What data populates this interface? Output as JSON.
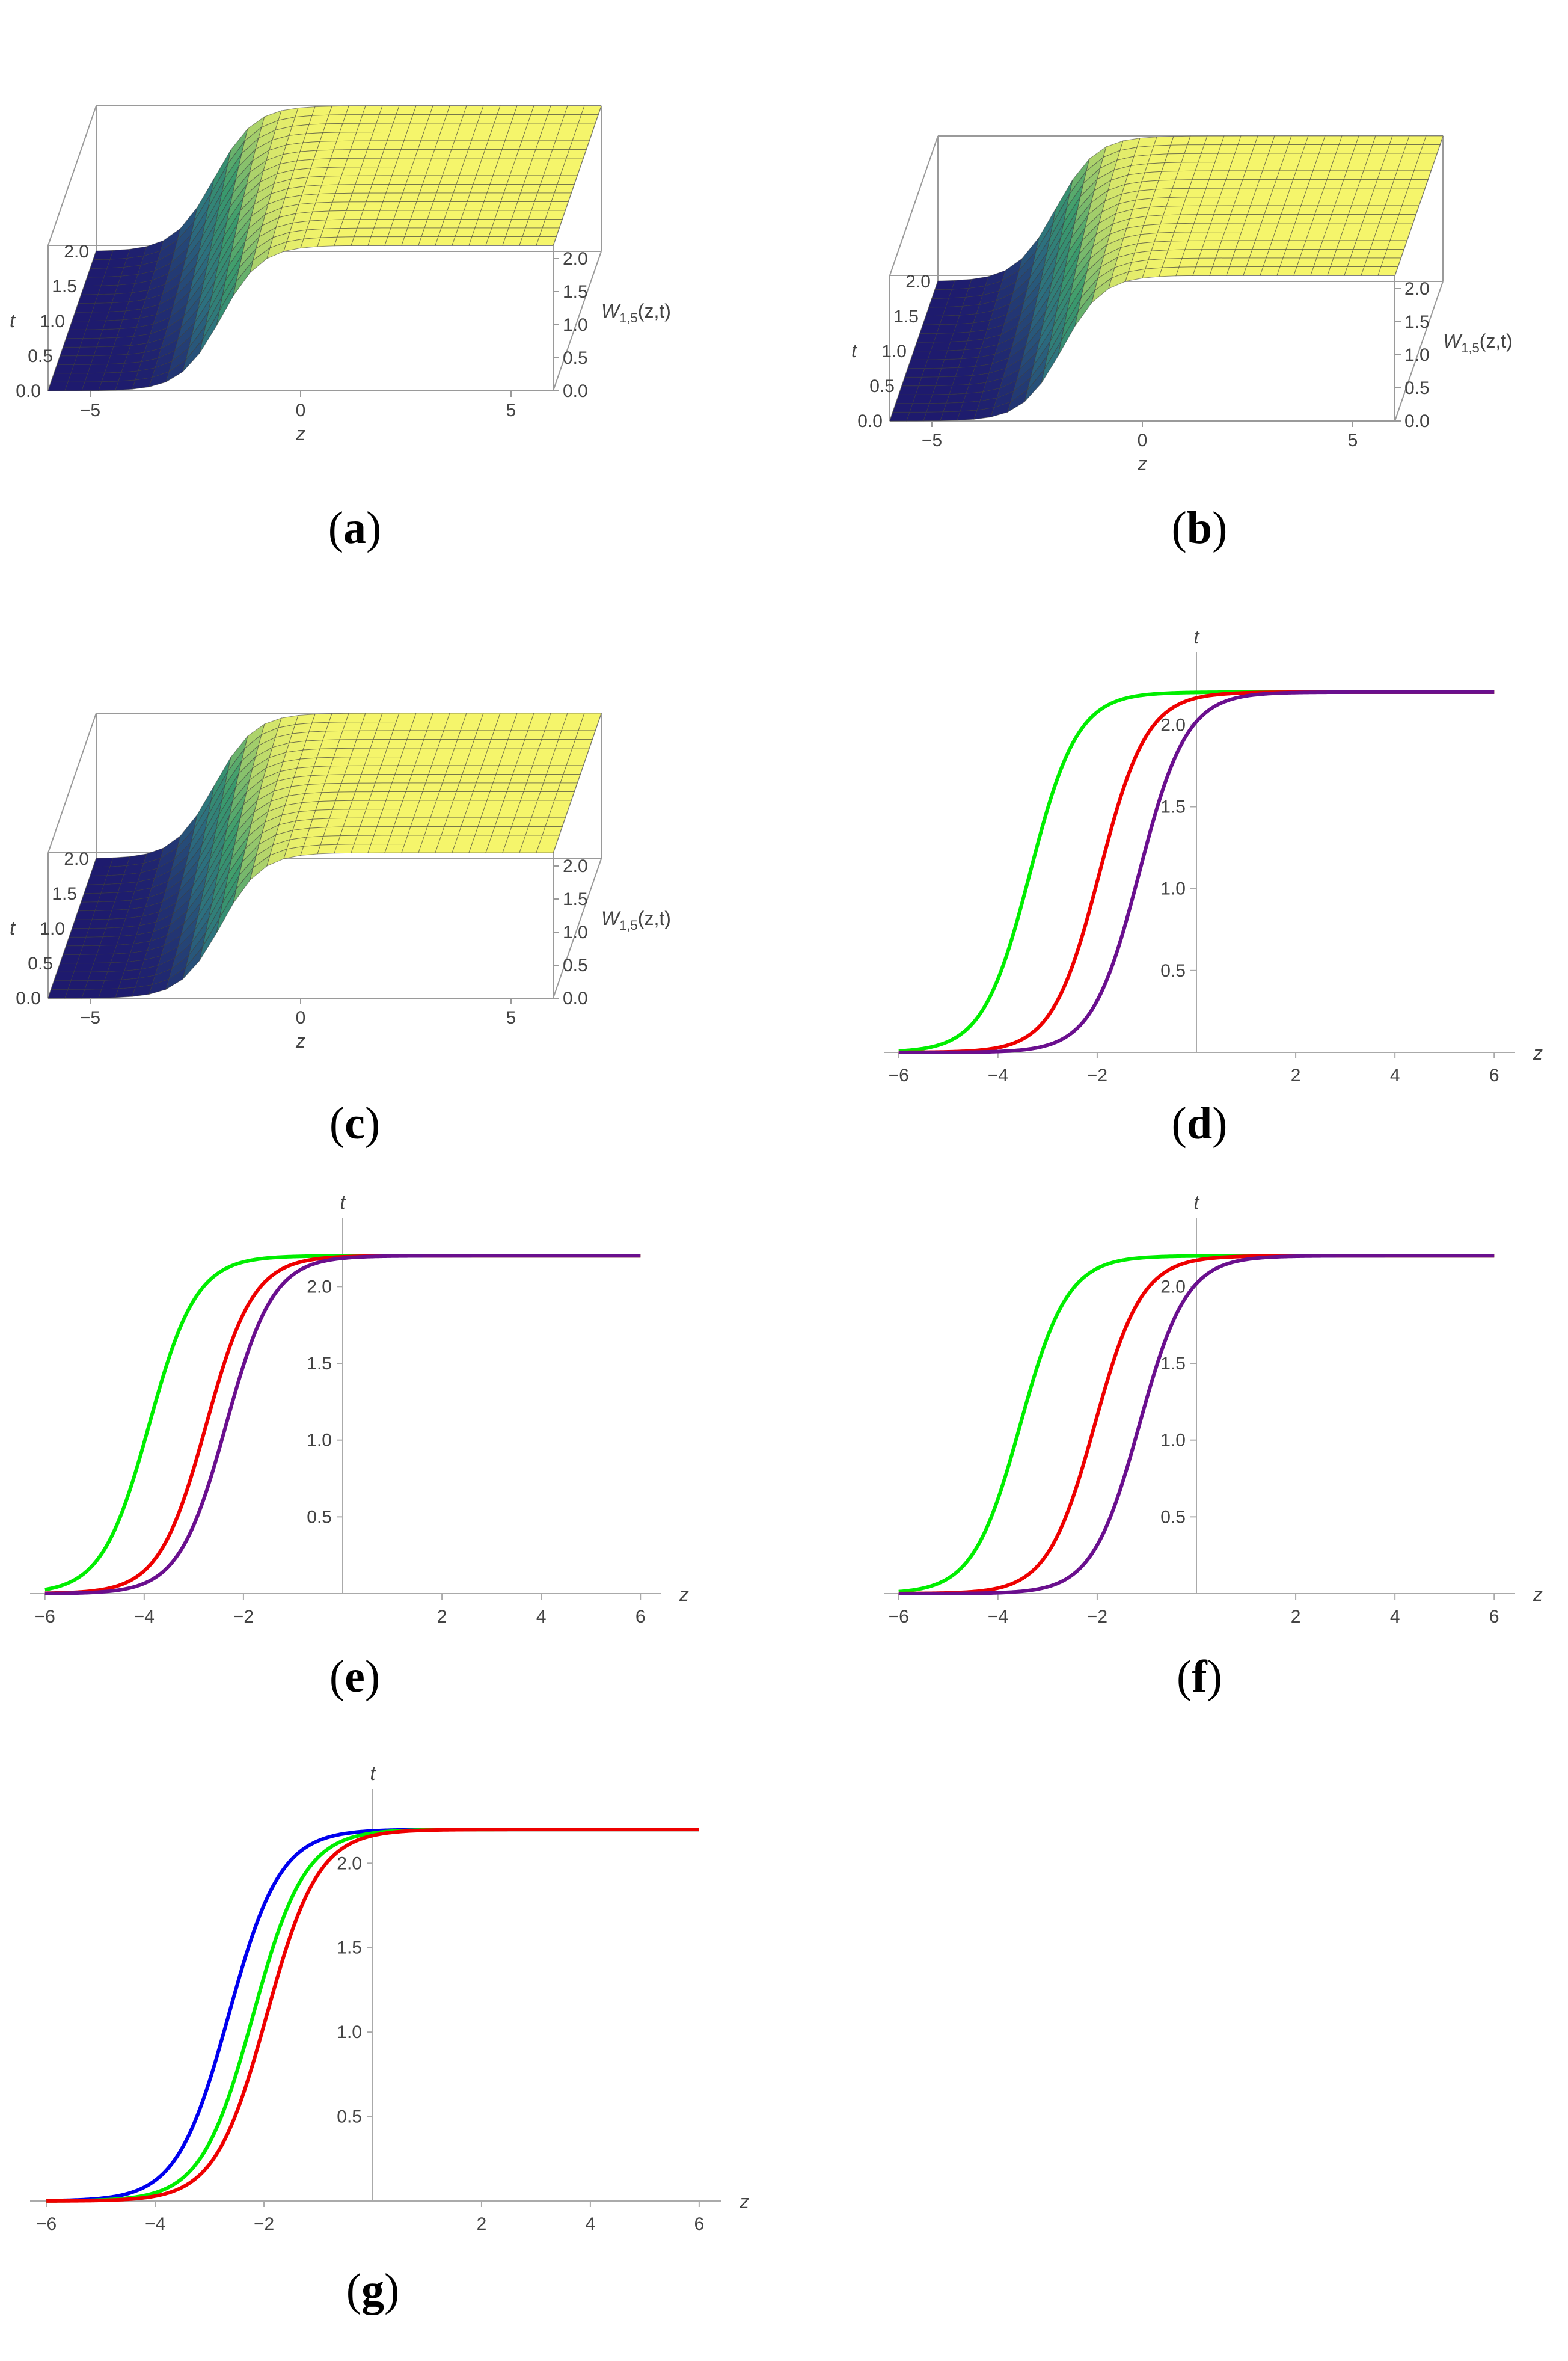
{
  "captions": {
    "a": {
      "open": "(",
      "letter": "a",
      "close": ")"
    },
    "b": {
      "open": "(",
      "letter": "b",
      "close": ")"
    },
    "c": {
      "open": "(",
      "letter": "c",
      "close": ")"
    },
    "d": {
      "open": "(",
      "letter": "d",
      "close": ")"
    },
    "e": {
      "open": "(",
      "letter": "e",
      "close": ")"
    },
    "f": {
      "open": "(",
      "letter": "f",
      "close": ")"
    },
    "g": {
      "open": "(",
      "letter": "g",
      "close": ")"
    }
  },
  "surface_labels": {
    "t_label": "t",
    "z_label": "z",
    "w_label": "W",
    "w_sub": "1,5",
    "w_args": "(z,t)"
  },
  "chart_data": [
    {
      "id": "a",
      "type": "surface3d",
      "xlabel": "z",
      "ylabel": "t",
      "zlabel": "W1,5(z,t)",
      "x_ticks": [
        "−5",
        "0",
        "5"
      ],
      "t_ticks": [
        "0.0",
        "0.5",
        "1.0",
        "1.5",
        "2.0"
      ],
      "w_ticks": [
        "0.0",
        "0.5",
        "1.0",
        "1.5",
        "2.0"
      ],
      "xlim": [
        -6,
        6
      ],
      "tlim": [
        0,
        2
      ],
      "wlim": [
        0,
        2.2
      ],
      "colormap": [
        "#1e1a6e",
        "#2c6f7f",
        "#3a9b6c",
        "#f5f56b"
      ]
    },
    {
      "id": "b",
      "type": "surface3d",
      "xlabel": "z",
      "ylabel": "t",
      "zlabel": "W1,5(z,t)",
      "x_ticks": [
        "−5",
        "0",
        "5"
      ],
      "t_ticks": [
        "0.0",
        "0.5",
        "1.0",
        "1.5",
        "2.0"
      ],
      "w_ticks": [
        "0.0",
        "0.5",
        "1.0",
        "1.5",
        "2.0"
      ],
      "xlim": [
        -6,
        6
      ],
      "tlim": [
        0,
        2
      ],
      "wlim": [
        0,
        2.2
      ],
      "colormap": [
        "#1e1a6e",
        "#2c6f7f",
        "#3a9b6c",
        "#f5f56b"
      ]
    },
    {
      "id": "c",
      "type": "surface3d",
      "xlabel": "z",
      "ylabel": "t",
      "zlabel": "W1,5(z,t)",
      "x_ticks": [
        "−5",
        "0",
        "5"
      ],
      "t_ticks": [
        "0.0",
        "0.5",
        "1.0",
        "1.5",
        "2.0"
      ],
      "w_ticks": [
        "0.0",
        "0.5",
        "1.0",
        "1.5",
        "2.0"
      ],
      "xlim": [
        -6,
        6
      ],
      "tlim": [
        0,
        2
      ],
      "wlim": [
        0,
        2.2
      ],
      "colormap": [
        "#1e1a6e",
        "#2c6f7f",
        "#3a9b6c",
        "#f5f56b"
      ]
    },
    {
      "id": "d",
      "type": "line",
      "xlabel": "z",
      "ylabel": "t",
      "xlim": [
        -6.3,
        6.3
      ],
      "ylim": [
        0,
        2.35
      ],
      "x_ticks": [
        -6,
        -4,
        -2,
        2,
        4,
        6
      ],
      "x_tick_labels": [
        "−6",
        "−4",
        "−2",
        "2",
        "4",
        "6"
      ],
      "y_ticks": [
        0.5,
        1.0,
        1.5,
        2.0
      ],
      "y_tick_labels": [
        "0.5",
        "1.0",
        "1.5",
        "2.0"
      ],
      "series": [
        {
          "color": "#00ee00",
          "level": 2.2,
          "center": -3.35,
          "k": 2.1
        },
        {
          "color": "#ee0000",
          "level": 2.2,
          "center": -1.95,
          "k": 2.1
        },
        {
          "color": "#6a0f8e",
          "level": 2.2,
          "center": -1.15,
          "k": 2.1
        }
      ]
    },
    {
      "id": "e",
      "type": "line",
      "xlabel": "z",
      "ylabel": "t",
      "xlim": [
        -6.3,
        6.3
      ],
      "ylim": [
        0,
        2.35
      ],
      "x_ticks": [
        -6,
        -4,
        -2,
        2,
        4,
        6
      ],
      "x_tick_labels": [
        "−6",
        "−4",
        "−2",
        "2",
        "4",
        "6"
      ],
      "y_ticks": [
        0.5,
        1.0,
        1.5,
        2.0
      ],
      "y_tick_labels": [
        "0.5",
        "1.0",
        "1.5",
        "2.0"
      ],
      "series": [
        {
          "color": "#00ee00",
          "level": 2.2,
          "center": -3.9,
          "k": 2.1
        },
        {
          "color": "#ee0000",
          "level": 2.2,
          "center": -2.75,
          "k": 2.1
        },
        {
          "color": "#6a0f8e",
          "level": 2.2,
          "center": -2.35,
          "k": 2.1
        }
      ]
    },
    {
      "id": "f",
      "type": "line",
      "xlabel": "z",
      "ylabel": "t",
      "xlim": [
        -6.3,
        6.3
      ],
      "ylim": [
        0,
        2.35
      ],
      "x_ticks": [
        -6,
        -4,
        -2,
        2,
        4,
        6
      ],
      "x_tick_labels": [
        "−6",
        "−4",
        "−2",
        "2",
        "4",
        "6"
      ],
      "y_ticks": [
        0.5,
        1.0,
        1.5,
        2.0
      ],
      "y_tick_labels": [
        "0.5",
        "1.0",
        "1.5",
        "2.0"
      ],
      "series": [
        {
          "color": "#00ee00",
          "level": 2.2,
          "center": -3.55,
          "k": 2.1
        },
        {
          "color": "#ee0000",
          "level": 2.2,
          "center": -2.05,
          "k": 2.1
        },
        {
          "color": "#6a0f8e",
          "level": 2.2,
          "center": -1.15,
          "k": 2.1
        }
      ]
    },
    {
      "id": "g",
      "type": "line",
      "xlabel": "z",
      "ylabel": "t",
      "xlim": [
        -6.3,
        6.3
      ],
      "ylim": [
        0,
        2.35
      ],
      "x_ticks": [
        -6,
        -4,
        -2,
        2,
        4,
        6
      ],
      "x_tick_labels": [
        "−6",
        "−4",
        "−2",
        "2",
        "4",
        "6"
      ],
      "y_ticks": [
        0.5,
        1.0,
        1.5,
        2.0
      ],
      "y_tick_labels": [
        "0.5",
        "1.0",
        "1.5",
        "2.0"
      ],
      "series": [
        {
          "color": "#0000ee",
          "level": 2.2,
          "center": -2.65,
          "k": 2.1
        },
        {
          "color": "#00ee00",
          "level": 2.2,
          "center": -2.2,
          "k": 2.1
        },
        {
          "color": "#ee0000",
          "level": 2.2,
          "center": -1.95,
          "k": 2.1
        }
      ]
    }
  ]
}
